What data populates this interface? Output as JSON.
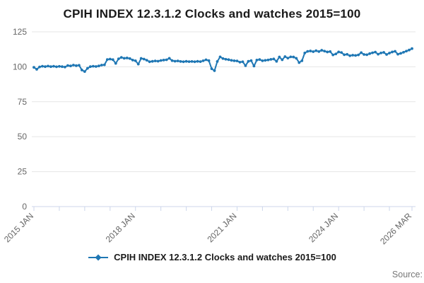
{
  "title": "CPIH INDEX 12.3.1.2 Clocks and watches 2015=100",
  "legend": {
    "label": "CPIH INDEX 12.3.1.2 Clocks and watches 2015=100"
  },
  "source_label": "Source:",
  "colors": {
    "series": "#1f77b4",
    "axis": "#ccd6eb",
    "grid": "#e6e6e6",
    "tick_text": "#666666",
    "title_text": "#1a1a1a"
  },
  "chart_data": {
    "type": "line",
    "title": "CPIH INDEX 12.3.1.2 Clocks and watches 2015=100",
    "xlabel": "",
    "ylabel": "",
    "ylim": [
      0,
      125
    ],
    "y_ticks": [
      0,
      25,
      50,
      75,
      100,
      125
    ],
    "grid": "horizontal",
    "legend_position": "bottom",
    "frequency": "monthly",
    "start_period": "2015 JAN",
    "end_period": "2026 MAR",
    "x_tick_interval_months": 9,
    "x_tick_labels": [
      {
        "month_index": 0,
        "label": "2015 JAN"
      },
      {
        "month_index": 36,
        "label": "2018 JAN"
      },
      {
        "month_index": 72,
        "label": "2021 JAN"
      },
      {
        "month_index": 108,
        "label": "2024 JAN"
      },
      {
        "month_index": 134,
        "label": "2026 MAR"
      }
    ],
    "series": [
      {
        "name": "CPIH INDEX 12.3.1.2 Clocks and watches 2015=100",
        "color": "#1f77b4",
        "values": [
          99.6,
          98.2,
          99.9,
          100.4,
          100.1,
          100.5,
          100.1,
          100.4,
          100.0,
          100.3,
          100.1,
          99.8,
          100.9,
          100.6,
          101.2,
          100.8,
          101.1,
          97.7,
          96.6,
          98.9,
          100.1,
          100.4,
          100.2,
          100.6,
          101.2,
          101.4,
          105.2,
          105.5,
          105.1,
          102.4,
          105.7,
          106.7,
          106.1,
          106.3,
          105.9,
          104.8,
          104.3,
          101.9,
          106.0,
          105.5,
          104.7,
          103.6,
          103.9,
          104.2,
          104.0,
          104.5,
          104.8,
          105.0,
          106.1,
          104.4,
          104.0,
          104.2,
          103.8,
          103.6,
          103.9,
          103.7,
          103.8,
          103.6,
          103.9,
          103.7,
          104.3,
          105.0,
          104.4,
          98.6,
          97.2,
          103.8,
          107.1,
          105.9,
          105.4,
          105.1,
          104.6,
          104.3,
          104.2,
          103.3,
          103.6,
          100.8,
          103.9,
          104.4,
          100.5,
          104.8,
          105.2,
          104.3,
          104.6,
          104.9,
          105.3,
          105.6,
          103.9,
          107.0,
          105.0,
          107.3,
          106.2,
          107.1,
          107.0,
          106.1,
          103.0,
          104.3,
          109.9,
          111.0,
          111.3,
          110.8,
          111.5,
          110.9,
          111.8,
          111.2,
          110.6,
          110.9,
          108.5,
          109.2,
          110.6,
          110.2,
          108.6,
          108.9,
          107.9,
          108.3,
          108.1,
          108.5,
          110.1,
          108.8,
          108.6,
          109.4,
          110.0,
          110.5,
          109.0,
          109.9,
          110.3,
          108.8,
          109.8,
          110.6,
          111.1,
          109.0,
          109.6,
          110.4,
          111.2,
          112.0,
          113.0
        ]
      }
    ]
  }
}
